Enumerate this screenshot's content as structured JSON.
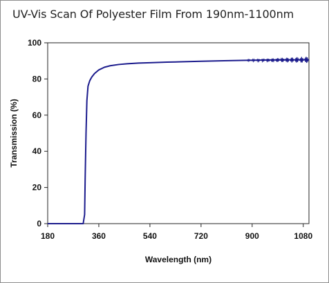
{
  "chart_data": {
    "type": "line",
    "title": "UV-Vis Scan Of Polyester Film From 190nm-1100nm",
    "xlabel": "Wavelength (nm)",
    "ylabel": "Transmission (%)",
    "xlim": [
      180,
      1100
    ],
    "ylim": [
      0,
      100
    ],
    "x_ticks": [
      180,
      360,
      540,
      720,
      900,
      1080
    ],
    "y_ticks": [
      0,
      20,
      40,
      60,
      80,
      100
    ],
    "grid": false,
    "legend": "none",
    "series": [
      {
        "color": "#1a1a8c",
        "x": [
          180,
          200,
          230,
          260,
          290,
          305,
          310,
          312,
          315,
          318,
          322,
          328,
          335,
          345,
          360,
          380,
          400,
          430,
          460,
          500,
          540,
          600,
          650,
          720,
          800,
          880,
          950,
          1000,
          1050,
          1100
        ],
        "y": [
          0,
          0,
          0,
          0,
          0,
          0,
          5,
          25,
          50,
          68,
          76,
          79,
          81,
          83,
          85,
          86.5,
          87.3,
          88,
          88.4,
          88.8,
          89,
          89.3,
          89.5,
          89.8,
          90.1,
          90.3,
          90.5,
          90.6,
          90.6,
          90.6
        ]
      }
    ]
  }
}
